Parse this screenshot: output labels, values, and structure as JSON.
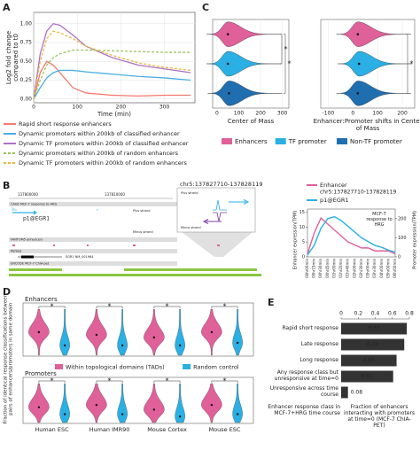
{
  "panel_labels": [
    "A",
    "B",
    "C",
    "D",
    "E"
  ],
  "chart_data": [
    {
      "type": "line",
      "xlabel": "Time (min)",
      "ylabel": [
        "Log2 fold change",
        "compared to t0"
      ],
      "x": [
        0,
        15,
        30,
        45,
        60,
        90,
        120,
        180,
        240,
        300,
        360
      ],
      "xlim": [
        0,
        370
      ],
      "xticks": [
        0,
        100,
        200,
        300
      ],
      "ylim": [
        -0.05,
        1.15
      ],
      "yticks": [
        {
          "value": 0,
          "label": "0.00"
        },
        {
          "value": 0.25,
          "label": "0.25"
        },
        {
          "value": 0.5,
          "label": "0.50"
        },
        {
          "value": 0.75,
          "label": "0.75"
        },
        {
          "value": 1,
          "label": "1.00"
        }
      ],
      "grid": true,
      "series": [
        {
          "name": "Rapid short response enhancers",
          "color": "#f4796b",
          "dash": false,
          "values": [
            0,
            0.35,
            0.5,
            0.45,
            0.35,
            0.15,
            0.08,
            0.05,
            0.04,
            0.05,
            0.05
          ]
        },
        {
          "name": "Dynamic promoters within 200kb of classified enhancer",
          "color": "#4aaee3",
          "dash": false,
          "values": [
            0,
            0.15,
            0.28,
            0.35,
            0.38,
            0.38,
            0.36,
            0.33,
            0.3,
            0.28,
            0.25
          ]
        },
        {
          "name": "Dynamic TF promoters within 200kb of classified enhancer",
          "color": "#b06fc4",
          "dash": false,
          "values": [
            0,
            0.6,
            0.9,
            1.0,
            0.98,
            0.85,
            0.7,
            0.55,
            0.45,
            0.4,
            0.35
          ]
        },
        {
          "name": "Dynamic promoters within 200kb of random enhancers",
          "color": "#9cc45c",
          "dash": true,
          "values": [
            0,
            0.25,
            0.45,
            0.55,
            0.6,
            0.65,
            0.65,
            0.64,
            0.63,
            0.62,
            0.62
          ]
        },
        {
          "name": "Dynamic TF promoters within 200kb of random enhancers",
          "color": "#e8b83a",
          "dash": true,
          "values": [
            0,
            0.5,
            0.8,
            0.9,
            0.88,
            0.8,
            0.7,
            0.58,
            0.48,
            0.42,
            0.38
          ]
        }
      ]
    },
    {
      "type": "line",
      "ylabel": "Enhancer expression(TPM)",
      "y2label": "Promoter expression(TPM)",
      "legend_note": "chr5:137827710-137828119",
      "annotation": "MCF-7 response to HRG",
      "categories": [
        "00hr00min",
        "00hr15min",
        "00hr30min",
        "00hr45min",
        "01hr00min",
        "01hr20min",
        "01hr40min",
        "02hr00min",
        "02hr30min",
        "03hr00min",
        "03hr30min",
        "04hr00min",
        "05hr00min",
        "06hr00min"
      ],
      "ylim": [
        0,
        16
      ],
      "yticks": [
        0,
        5,
        10,
        15
      ],
      "y2lim": [
        0,
        250
      ],
      "y2ticks": [
        0,
        100,
        200
      ],
      "series": [
        {
          "name": "Enhancer",
          "color": "#e0609a",
          "values": [
            1,
            8,
            13,
            11,
            9,
            7,
            5,
            4,
            3,
            3,
            2,
            2,
            2,
            1
          ]
        },
        {
          "name": "p1@EGR1",
          "color": "#2ab0e4",
          "axis": "y2",
          "values": [
            10,
            60,
            150,
            200,
            210,
            190,
            160,
            130,
            100,
            80,
            60,
            50,
            35,
            25
          ]
        }
      ]
    },
    {
      "type": "violin",
      "series": [
        {
          "name": "Enhancers",
          "color": "#e0609a"
        },
        {
          "name": "TF promoter",
          "color": "#2ab0e4"
        },
        {
          "name": "Non-TF promoter",
          "color": "#1f6fb0"
        }
      ],
      "panels": [
        {
          "xlabel": "Center of Mass",
          "xlim": [
            -20,
            330
          ],
          "xticks": [
            0,
            100,
            200,
            300
          ],
          "values": [
            50,
            50,
            55
          ],
          "significance": [
            "*",
            "*"
          ]
        },
        {
          "xlabel": "Enhancer:Promoter shifts in Center of Mass",
          "xlim": [
            -130,
            250
          ],
          "xticks": [
            -100,
            0,
            100,
            200
          ],
          "values": [
            20,
            25,
            20
          ],
          "significance": [
            "*"
          ]
        }
      ]
    },
    {
      "type": "violin",
      "ylabel": "Fraction of identical response classifications between pairs of enhancers/promoters in same domain",
      "categories": [
        "Human ESC",
        "Human IMR90",
        "Mouse Cortex",
        "Mouse ESC"
      ],
      "ylim": [
        0,
        1
      ],
      "series": [
        {
          "name": "Within topological domains (TADs)",
          "color": "#e0609a"
        },
        {
          "name": "Random control",
          "color": "#2ab0e4"
        }
      ],
      "panels": [
        {
          "title": "Enhancers",
          "values": [
            [
              0.45,
              0.4,
              0.35,
              0.45
            ],
            [
              0.2,
              0.2,
              0.2,
              0.25
            ]
          ],
          "significance": [
            "*",
            "*",
            "*",
            "*"
          ]
        },
        {
          "title": "Promoters",
          "values": [
            [
              0.35,
              0.4,
              0.3,
              0.4
            ],
            [
              0.2,
              0.2,
              0.15,
              0.2
            ]
          ],
          "significance": [
            "*",
            "*",
            "*",
            "*"
          ]
        }
      ]
    },
    {
      "type": "hbar",
      "ylabel": "Enhancer response class in MCF-7+HRG time course",
      "xlabel": "Fraction of enhancers interacting with promoters at time=0 (MCF-7 ChIA-PET)",
      "categories": [
        "Rapid short response",
        "Late response",
        "Long response",
        "Any response class but unresponsive at time=0",
        "Unresponsive across time course"
      ],
      "values": [
        0.77,
        0.74,
        0.65,
        0.61,
        0.08
      ],
      "color": "#333333",
      "xlim": [
        0,
        0.8
      ],
      "xticks": [
        0,
        0.2,
        0.4,
        0.6,
        0.8
      ]
    }
  ],
  "browser": {
    "region": "chr5:137827710-137828119",
    "coord_left": "137800000",
    "coord_right": "137810000",
    "track_cage": "CAGE MCF-7 response to HRG",
    "promoter": "p1@EGR1",
    "plus": "Plus strand",
    "minus": "Minus strand",
    "fantom": "FANTOM5 enhancers",
    "refseq": "RefSeq",
    "gene": "EGR1 NM_001964",
    "chiapet": "ENCODE MCF-7 ChIA-pet"
  }
}
